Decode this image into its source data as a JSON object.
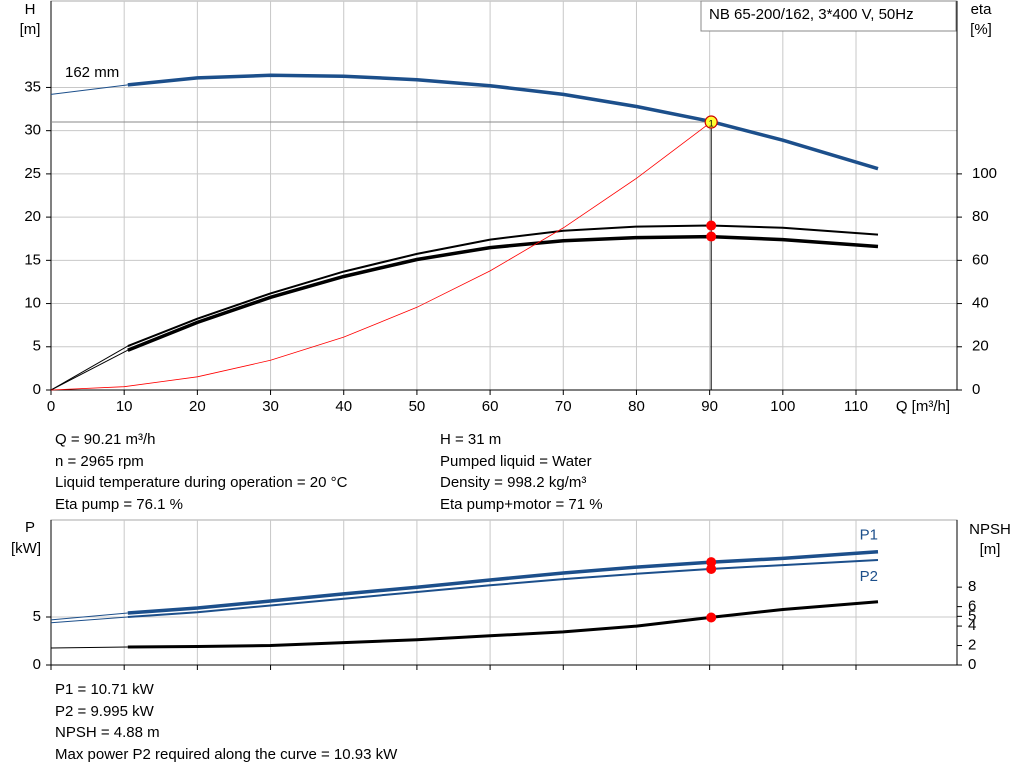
{
  "chart_data": [
    {
      "type": "line",
      "title": "NB 65-200/162, 3*400 V, 50Hz",
      "annotation": "162 mm",
      "x_label": "Q [m³/h]",
      "y_label": [
        "H",
        "[m]"
      ],
      "y2_label": [
        "eta",
        "[%]"
      ],
      "xlim": [
        0,
        123.8
      ],
      "xticks": [
        0,
        10,
        20,
        30,
        40,
        50,
        60,
        70,
        80,
        90,
        100,
        110
      ],
      "ylim": [
        0,
        45
      ],
      "yticks": [
        0,
        5,
        10,
        15,
        20,
        25,
        30,
        35
      ],
      "y2lim": [
        0,
        180
      ],
      "y2ticks": [
        0,
        20,
        40,
        60,
        80,
        100
      ],
      "grid": true,
      "series": [
        {
          "color": "#1c4f8b",
          "width": 1,
          "x": [
            0,
            10.5
          ],
          "values": [
            34.2,
            35.3
          ]
        },
        {
          "color": "#1c4f8b",
          "width": 3.5,
          "x": [
            10.5,
            20,
            30,
            40,
            50,
            60,
            70,
            80,
            90,
            100,
            113
          ],
          "values": [
            35.3,
            36.1,
            36.4,
            36.3,
            35.9,
            35.2,
            34.2,
            32.8,
            31.1,
            28.9,
            25.6
          ]
        },
        {
          "color": "#000000",
          "width": 1,
          "axis": "y2",
          "x": [
            0,
            10.5
          ],
          "values": [
            0,
            20.3
          ]
        },
        {
          "color": "#000000",
          "width": 2,
          "axis": "y2",
          "x": [
            10.5,
            20,
            30,
            40,
            50,
            60,
            70,
            80,
            90,
            100,
            113
          ],
          "values": [
            20.3,
            33,
            44.7,
            54.8,
            63,
            69.6,
            73.7,
            75.6,
            76.1,
            75.1,
            71.9
          ]
        },
        {
          "color": "#000000",
          "width": 1,
          "axis": "y2",
          "x": [
            0,
            10.5
          ],
          "values": [
            0,
            18.4
          ]
        },
        {
          "color": "#000000",
          "width": 3.5,
          "axis": "y2",
          "x": [
            10.5,
            20,
            30,
            40,
            50,
            60,
            70,
            80,
            90,
            100,
            113
          ],
          "values": [
            18.4,
            31.3,
            42.9,
            52.5,
            60.4,
            65.9,
            69.1,
            70.5,
            71,
            69.6,
            66.4
          ]
        },
        {
          "color": "#ff0000",
          "width": 0.8,
          "x": [
            0,
            10,
            20,
            30,
            40,
            50,
            60,
            70,
            80,
            90.21
          ],
          "values": [
            0,
            0.38,
            1.53,
            3.44,
            6.12,
            9.57,
            13.78,
            18.75,
            24.49,
            31
          ]
        }
      ],
      "markers": [
        {
          "x": 90.21,
          "value": 76.1,
          "axis": "y2",
          "color": "#ff0000"
        },
        {
          "x": 90.21,
          "value": 71,
          "axis": "y2",
          "color": "#ff0000"
        }
      ],
      "duty_point": {
        "x": 90.21,
        "value": 31,
        "label": "1"
      }
    },
    {
      "type": "line",
      "y_label": [
        "P",
        "[kW]"
      ],
      "y2_label": [
        "NPSH",
        "[m]"
      ],
      "xlim": [
        0,
        123.8
      ],
      "ylim": [
        0,
        15.1
      ],
      "yticks": [
        0,
        5
      ],
      "y2lim": [
        0,
        14.9
      ],
      "y2ticks": [
        0,
        2,
        4,
        5,
        6,
        8
      ],
      "grid": true,
      "series": [
        {
          "color": "#1c4f8b",
          "width": 1,
          "x": [
            0,
            10.5
          ],
          "values": [
            4.7,
            5.42
          ]
        },
        {
          "name": "P1",
          "color": "#1c4f8b",
          "width": 3.5,
          "x": [
            10.5,
            20,
            30,
            40,
            50,
            60,
            70,
            80,
            90,
            100,
            113
          ],
          "values": [
            5.42,
            5.94,
            6.67,
            7.4,
            8.1,
            8.85,
            9.58,
            10.2,
            10.71,
            11.1,
            11.8
          ]
        },
        {
          "color": "#1c4f8b",
          "width": 1,
          "x": [
            0,
            10.5
          ],
          "values": [
            4.4,
            5.0
          ]
        },
        {
          "name": "P2",
          "color": "#1c4f8b",
          "width": 2,
          "x": [
            10.5,
            20,
            30,
            40,
            50,
            60,
            70,
            80,
            90,
            100,
            113
          ],
          "values": [
            5.0,
            5.5,
            6.2,
            6.9,
            7.6,
            8.3,
            8.95,
            9.5,
            9.995,
            10.4,
            10.93
          ]
        },
        {
          "color": "#000000",
          "width": 1,
          "axis": "y2",
          "x": [
            0,
            10.5
          ],
          "values": [
            1.75,
            1.85
          ]
        },
        {
          "color": "#000000",
          "width": 3,
          "axis": "y2",
          "x": [
            10.5,
            20,
            30,
            40,
            50,
            60,
            70,
            80,
            90,
            100,
            113
          ],
          "values": [
            1.85,
            1.9,
            2.0,
            2.3,
            2.6,
            3.0,
            3.4,
            4.0,
            4.88,
            5.7,
            6.5
          ]
        }
      ],
      "markers": [
        {
          "x": 90.21,
          "value": 10.71,
          "color": "#ff0000"
        },
        {
          "x": 90.21,
          "value": 9.995,
          "color": "#ff0000"
        },
        {
          "x": 90.21,
          "value": 4.88,
          "axis": "y2",
          "color": "#ff0000"
        }
      ]
    }
  ],
  "info_1": {
    "left": [
      "Q = 90.21 m³/h",
      "n = 2965 rpm",
      "Liquid temperature during operation = 20 °C",
      "Eta pump = 76.1 %"
    ],
    "right": [
      "H = 31 m",
      "Pumped liquid = Water",
      "Density = 998.2 kg/m³",
      "Eta pump+motor = 71 %"
    ]
  },
  "info_2": [
    "P1 = 10.71 kW",
    "P2 = 9.995 kW",
    "NPSH = 4.88 m",
    "Max power P2 required along the curve = 10.93 kW"
  ]
}
